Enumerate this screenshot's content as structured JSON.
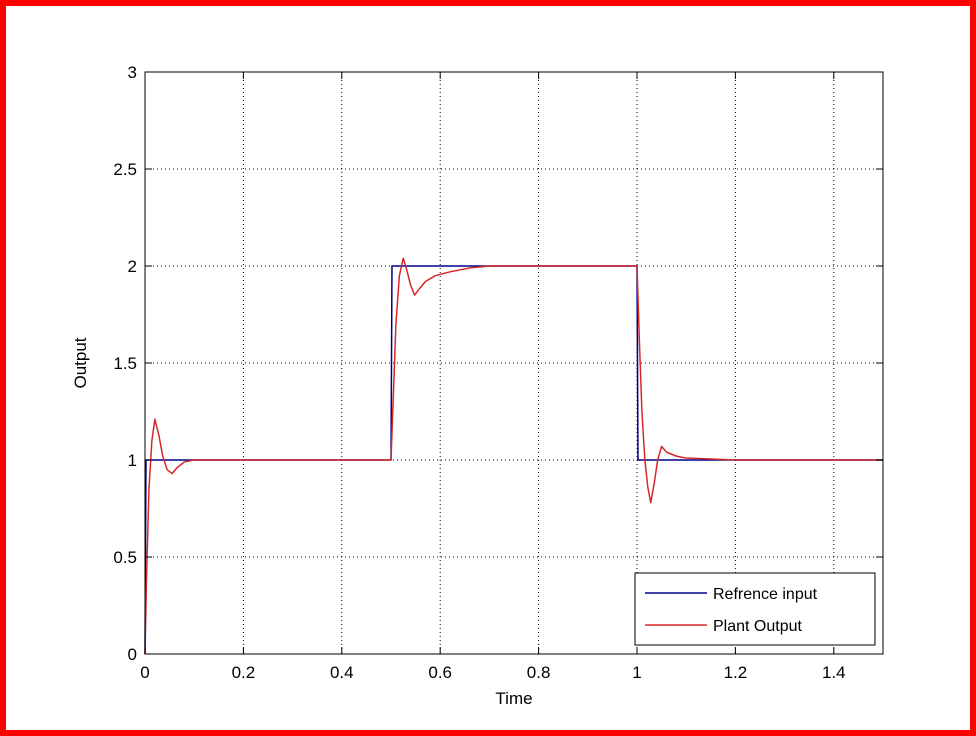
{
  "chart_data": {
    "type": "line",
    "title": "",
    "xlabel": "Time",
    "ylabel": "Output",
    "xlim": [
      0,
      1.5
    ],
    "ylim": [
      0,
      3
    ],
    "xticks": [
      0,
      0.2,
      0.4,
      0.6,
      0.8,
      1,
      1.2,
      1.4
    ],
    "xtick_labels": [
      "0",
      "0.2",
      "0.4",
      "0.6",
      "0.8",
      "1",
      "1.2",
      "1.4"
    ],
    "yticks": [
      0,
      0.5,
      1,
      1.5,
      2,
      2.5,
      3
    ],
    "ytick_labels": [
      "0",
      "0.5",
      "1",
      "1.5",
      "2",
      "2.5",
      "3"
    ],
    "grid": true,
    "legend_position": "bottom-right",
    "series": [
      {
        "name": "Refrence input",
        "color": "#00008b",
        "x": [
          0,
          0.002,
          0.1,
          0.5,
          0.502,
          0.7,
          1.0,
          1.002,
          1.5
        ],
        "y": [
          0,
          1,
          1,
          1,
          2,
          2,
          2,
          1,
          1
        ]
      },
      {
        "name": "Plant Output",
        "color": "#d62728",
        "x": [
          0,
          0.003,
          0.008,
          0.014,
          0.02,
          0.028,
          0.036,
          0.045,
          0.055,
          0.065,
          0.08,
          0.1,
          0.3,
          0.49,
          0.5,
          0.505,
          0.51,
          0.517,
          0.525,
          0.532,
          0.54,
          0.548,
          0.557,
          0.57,
          0.59,
          0.62,
          0.66,
          0.7,
          0.8,
          0.99,
          1.0,
          1.005,
          1.01,
          1.016,
          1.022,
          1.028,
          1.035,
          1.042,
          1.05,
          1.06,
          1.08,
          1.1,
          1.2,
          1.5
        ],
        "y": [
          0,
          0.38,
          0.85,
          1.1,
          1.21,
          1.13,
          1.02,
          0.95,
          0.93,
          0.96,
          0.99,
          1.0,
          1.0,
          1.0,
          1.0,
          1.35,
          1.7,
          1.95,
          2.04,
          1.98,
          1.9,
          1.85,
          1.88,
          1.92,
          1.95,
          1.97,
          1.99,
          2.0,
          2.0,
          2.0,
          2.0,
          1.6,
          1.25,
          1.0,
          0.86,
          0.78,
          0.88,
          1.0,
          1.07,
          1.04,
          1.02,
          1.01,
          1.0,
          1.0
        ]
      }
    ]
  }
}
